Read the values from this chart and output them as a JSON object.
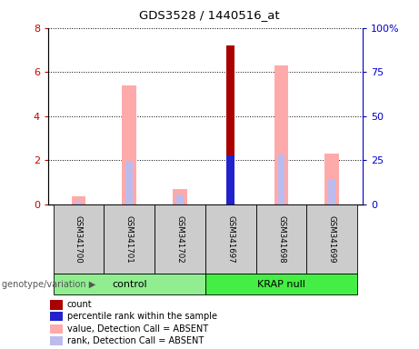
{
  "title": "GDS3528 / 1440516_at",
  "samples": [
    "GSM341700",
    "GSM341701",
    "GSM341702",
    "GSM341697",
    "GSM341698",
    "GSM341699"
  ],
  "groups": [
    {
      "name": "control",
      "indices": [
        0,
        1,
        2
      ],
      "color": "#90ee90"
    },
    {
      "name": "KRAP null",
      "indices": [
        3,
        4,
        5
      ],
      "color": "#44ee44"
    }
  ],
  "ylim_left": [
    0,
    8
  ],
  "ylim_right": [
    0,
    100
  ],
  "yticks_left": [
    0,
    2,
    4,
    6,
    8
  ],
  "yticks_right": [
    0,
    25,
    50,
    75,
    100
  ],
  "yticklabels_right": [
    "0",
    "25",
    "50",
    "75",
    "100%"
  ],
  "bars": [
    {
      "sample": "GSM341700",
      "count": 0,
      "percentile_rank": 0,
      "value_absent": 0.35,
      "rank_absent": 0.12
    },
    {
      "sample": "GSM341701",
      "count": 0,
      "percentile_rank": 0,
      "value_absent": 5.4,
      "rank_absent": 1.95
    },
    {
      "sample": "GSM341702",
      "count": 0,
      "percentile_rank": 0,
      "value_absent": 0.68,
      "rank_absent": 0.42
    },
    {
      "sample": "GSM341697",
      "count": 7.2,
      "percentile_rank": 2.2,
      "value_absent": 0,
      "rank_absent": 0
    },
    {
      "sample": "GSM341698",
      "count": 0,
      "percentile_rank": 0,
      "value_absent": 6.3,
      "rank_absent": 2.25
    },
    {
      "sample": "GSM341699",
      "count": 0,
      "percentile_rank": 0,
      "value_absent": 2.28,
      "rank_absent": 1.08
    }
  ],
  "count_color": "#aa0000",
  "percentile_color": "#2222cc",
  "value_absent_color": "#ffaaaa",
  "rank_absent_color": "#bbbbee",
  "legend_items": [
    {
      "label": "count",
      "color": "#aa0000"
    },
    {
      "label": "percentile rank within the sample",
      "color": "#2222cc"
    },
    {
      "label": "value, Detection Call = ABSENT",
      "color": "#ffaaaa"
    },
    {
      "label": "rank, Detection Call = ABSENT",
      "color": "#bbbbee"
    }
  ],
  "group_label": "genotype/variation",
  "left_axis_color": "#cc0000",
  "right_axis_color": "#0000cc",
  "box_color": "#cccccc",
  "bar_width": 0.28,
  "rank_bar_width": 0.14
}
